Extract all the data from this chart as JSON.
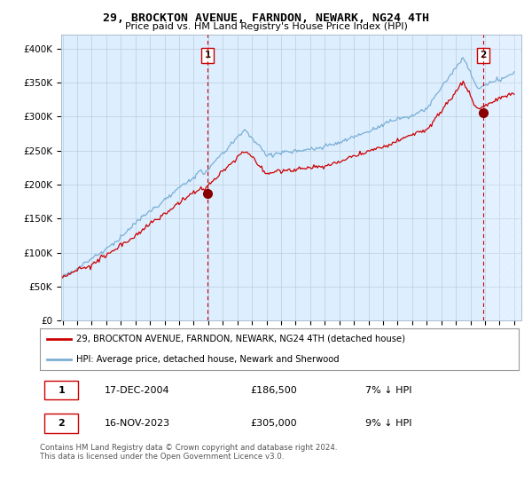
{
  "title": "29, BROCKTON AVENUE, FARNDON, NEWARK, NG24 4TH",
  "subtitle": "Price paid vs. HM Land Registry's House Price Index (HPI)",
  "ylim": [
    0,
    420000
  ],
  "yticks": [
    0,
    50000,
    100000,
    150000,
    200000,
    250000,
    300000,
    350000,
    400000
  ],
  "ytick_labels": [
    "£0",
    "£50K",
    "£100K",
    "£150K",
    "£200K",
    "£250K",
    "£300K",
    "£350K",
    "£400K"
  ],
  "hpi_color": "#7bafd4",
  "price_color": "#cc0000",
  "annotation_color": "#cc0000",
  "dashed_line_color": "#cc0000",
  "plot_bg_color": "#ddeeff",
  "transaction1_price": 186500,
  "transaction1_date": "17-DEC-2004",
  "transaction1_year": 2004.96,
  "transaction2_price": 305000,
  "transaction2_date": "16-NOV-2023",
  "transaction2_year": 2023.875,
  "legend_line1": "29, BROCKTON AVENUE, FARNDON, NEWARK, NG24 4TH (detached house)",
  "legend_line2": "HPI: Average price, detached house, Newark and Sherwood",
  "transaction1_note": "7% ↓ HPI",
  "transaction2_note": "9% ↓ HPI",
  "footnote": "Contains HM Land Registry data © Crown copyright and database right 2024.\nThis data is licensed under the Open Government Licence v3.0.",
  "background_color": "#ffffff",
  "grid_color": "#bbccdd",
  "xmin": 1995,
  "xmax": 2026
}
